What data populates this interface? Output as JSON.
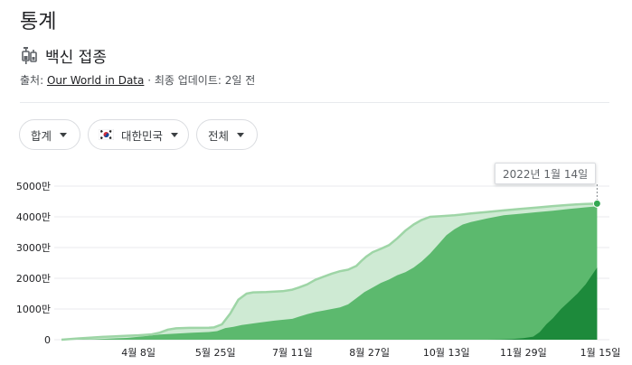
{
  "header": {
    "title": "통계"
  },
  "section": {
    "icon": "syringe-icon",
    "title": "백신 접종"
  },
  "source": {
    "prefix": "출처: ",
    "link": "Our World in Data",
    "suffix": " · 최종 업데이트: 2일 전"
  },
  "filters": [
    {
      "label": "합계"
    },
    {
      "label": "대한민국",
      "icon": "korea-flag-icon"
    },
    {
      "label": "전체"
    }
  ],
  "tooltip": {
    "date": "2022년 1월 14일"
  },
  "colors": {
    "series_1": "#ceead3",
    "series_1_line": "#9ed5a6",
    "series_2": "#5cb96e",
    "series_3": "#1d8a3b",
    "marker": "#34a853",
    "grid": "#e8eaed"
  },
  "chart_data": {
    "type": "area",
    "ylim": [
      0,
      5000
    ],
    "y_ticks": [
      {
        "value": 0,
        "label": "0"
      },
      {
        "value": 1000,
        "label": "1000만"
      },
      {
        "value": 2000,
        "label": "2000만"
      },
      {
        "value": 3000,
        "label": "3000만"
      },
      {
        "value": 4000,
        "label": "4000만"
      },
      {
        "value": 5000,
        "label": "5000만"
      }
    ],
    "x_ticks": [
      {
        "day": 47,
        "label": "4월 8일"
      },
      {
        "day": 94,
        "label": "5월 25일"
      },
      {
        "day": 141,
        "label": "7월 11일"
      },
      {
        "day": 188,
        "label": "8월 27일"
      },
      {
        "day": 235,
        "label": "10월 13일"
      },
      {
        "day": 282,
        "label": "11월 29일"
      },
      {
        "day": 329,
        "label": "1월 15일"
      }
    ],
    "x_range": [
      0,
      329
    ],
    "grid": true,
    "series": [
      {
        "points": [
          [
            0,
            0
          ],
          [
            10,
            40
          ],
          [
            25,
            90
          ],
          [
            40,
            130
          ],
          [
            47,
            145
          ],
          [
            55,
            175
          ],
          [
            60,
            230
          ],
          [
            65,
            330
          ],
          [
            70,
            370
          ],
          [
            78,
            385
          ],
          [
            90,
            390
          ],
          [
            93,
            400
          ],
          [
            98,
            500
          ],
          [
            103,
            850
          ],
          [
            108,
            1300
          ],
          [
            113,
            1500
          ],
          [
            117,
            1540
          ],
          [
            125,
            1550
          ],
          [
            135,
            1580
          ],
          [
            141,
            1630
          ],
          [
            145,
            1700
          ],
          [
            150,
            1800
          ],
          [
            155,
            1950
          ],
          [
            160,
            2050
          ],
          [
            165,
            2150
          ],
          [
            170,
            2230
          ],
          [
            175,
            2280
          ],
          [
            180,
            2400
          ],
          [
            183,
            2560
          ],
          [
            186,
            2700
          ],
          [
            190,
            2850
          ],
          [
            195,
            2960
          ],
          [
            200,
            3080
          ],
          [
            205,
            3300
          ],
          [
            210,
            3550
          ],
          [
            215,
            3750
          ],
          [
            220,
            3900
          ],
          [
            225,
            4000
          ],
          [
            232,
            4020
          ],
          [
            240,
            4050
          ],
          [
            250,
            4110
          ],
          [
            260,
            4160
          ],
          [
            270,
            4210
          ],
          [
            280,
            4260
          ],
          [
            290,
            4300
          ],
          [
            300,
            4350
          ],
          [
            310,
            4390
          ],
          [
            320,
            4420
          ],
          [
            327,
            4430
          ]
        ]
      },
      {
        "points": [
          [
            0,
            0
          ],
          [
            20,
            15
          ],
          [
            40,
            60
          ],
          [
            50,
            110
          ],
          [
            60,
            170
          ],
          [
            70,
            200
          ],
          [
            80,
            230
          ],
          [
            90,
            250
          ],
          [
            95,
            280
          ],
          [
            100,
            380
          ],
          [
            105,
            420
          ],
          [
            110,
            480
          ],
          [
            120,
            550
          ],
          [
            130,
            620
          ],
          [
            141,
            680
          ],
          [
            145,
            750
          ],
          [
            150,
            830
          ],
          [
            155,
            900
          ],
          [
            160,
            950
          ],
          [
            165,
            1000
          ],
          [
            170,
            1050
          ],
          [
            175,
            1150
          ],
          [
            180,
            1350
          ],
          [
            185,
            1550
          ],
          [
            190,
            1700
          ],
          [
            195,
            1850
          ],
          [
            200,
            1960
          ],
          [
            205,
            2100
          ],
          [
            210,
            2200
          ],
          [
            215,
            2350
          ],
          [
            220,
            2550
          ],
          [
            225,
            2800
          ],
          [
            230,
            3100
          ],
          [
            235,
            3400
          ],
          [
            240,
            3600
          ],
          [
            245,
            3750
          ],
          [
            250,
            3830
          ],
          [
            260,
            3950
          ],
          [
            270,
            4050
          ],
          [
            280,
            4100
          ],
          [
            290,
            4150
          ],
          [
            300,
            4200
          ],
          [
            310,
            4260
          ],
          [
            320,
            4310
          ],
          [
            327,
            4340
          ]
        ]
      },
      {
        "points": [
          [
            0,
            0
          ],
          [
            260,
            0
          ],
          [
            268,
            10
          ],
          [
            275,
            25
          ],
          [
            282,
            50
          ],
          [
            288,
            100
          ],
          [
            292,
            250
          ],
          [
            296,
            500
          ],
          [
            300,
            700
          ],
          [
            305,
            1000
          ],
          [
            310,
            1250
          ],
          [
            315,
            1500
          ],
          [
            320,
            1800
          ],
          [
            327,
            2350
          ]
        ]
      }
    ]
  }
}
